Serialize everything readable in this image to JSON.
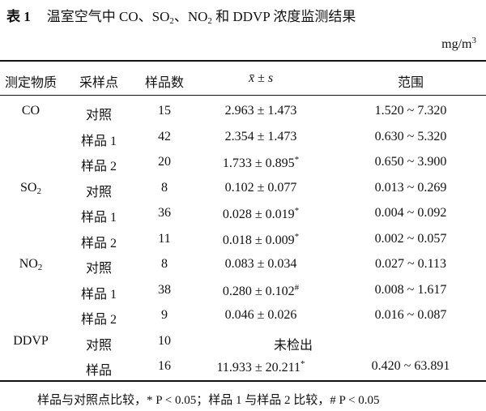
{
  "header": {
    "label": "表 1",
    "title_parts": [
      "温室空气中 CO、SO",
      "2",
      "、NO",
      "2",
      " 和 DDVP 浓度监测结果"
    ]
  },
  "unit": {
    "base": "mg/m",
    "sup": "3"
  },
  "table": {
    "columns": [
      "测定物质",
      "采样点",
      "样品数",
      "x̄ ± s",
      "范围"
    ],
    "rows": [
      {
        "substance": {
          "text": "CO"
        },
        "site": "对照",
        "n": "15",
        "mean": "2.963 ± 1.473",
        "range": "1.520 ~ 7.320"
      },
      {
        "site": "样品 1",
        "n": "42",
        "mean": "2.354 ± 1.473",
        "range": "0.630 ~ 5.320"
      },
      {
        "site": "样品 2",
        "n": "20",
        "mean": "1.733 ± 0.895",
        "sig": "*",
        "range": "0.650 ~ 3.900"
      },
      {
        "substance": {
          "text": "SO",
          "sub": "2"
        },
        "site": "对照",
        "n": "8",
        "mean": "0.102 ± 0.077",
        "range": "0.013 ~ 0.269"
      },
      {
        "site": "样品 1",
        "n": "36",
        "mean": "0.028 ± 0.019",
        "sig": "*",
        "range": "0.004 ~ 0.092"
      },
      {
        "site": "样品 2",
        "n": "11",
        "mean": "0.018 ± 0.009",
        "sig": "*",
        "range": "0.002 ~ 0.057"
      },
      {
        "substance": {
          "text": "NO",
          "sub": "2"
        },
        "site": "对照",
        "n": "8",
        "mean": "0.083 ± 0.034",
        "range": "0.027 ~ 0.113"
      },
      {
        "site": "样品 1",
        "n": "38",
        "mean": "0.280 ± 0.102",
        "sig": "#",
        "range": "0.008 ~ 1.617"
      },
      {
        "site": "样品 2",
        "n": "9",
        "mean": "0.046 ± 0.026",
        "range": "0.016 ~ 0.087"
      },
      {
        "substance": {
          "text": "DDVP"
        },
        "site": "对照",
        "n": "10",
        "mean": "未检出"
      },
      {
        "site": "样品",
        "n": "16",
        "mean": "11.933 ± 20.211",
        "sig": "*",
        "range": "0.420 ~ 63.891"
      }
    ]
  },
  "footnote": "样品与对照点比较，* P < 0.05；样品 1 与样品 2 比较，# P < 0.05"
}
